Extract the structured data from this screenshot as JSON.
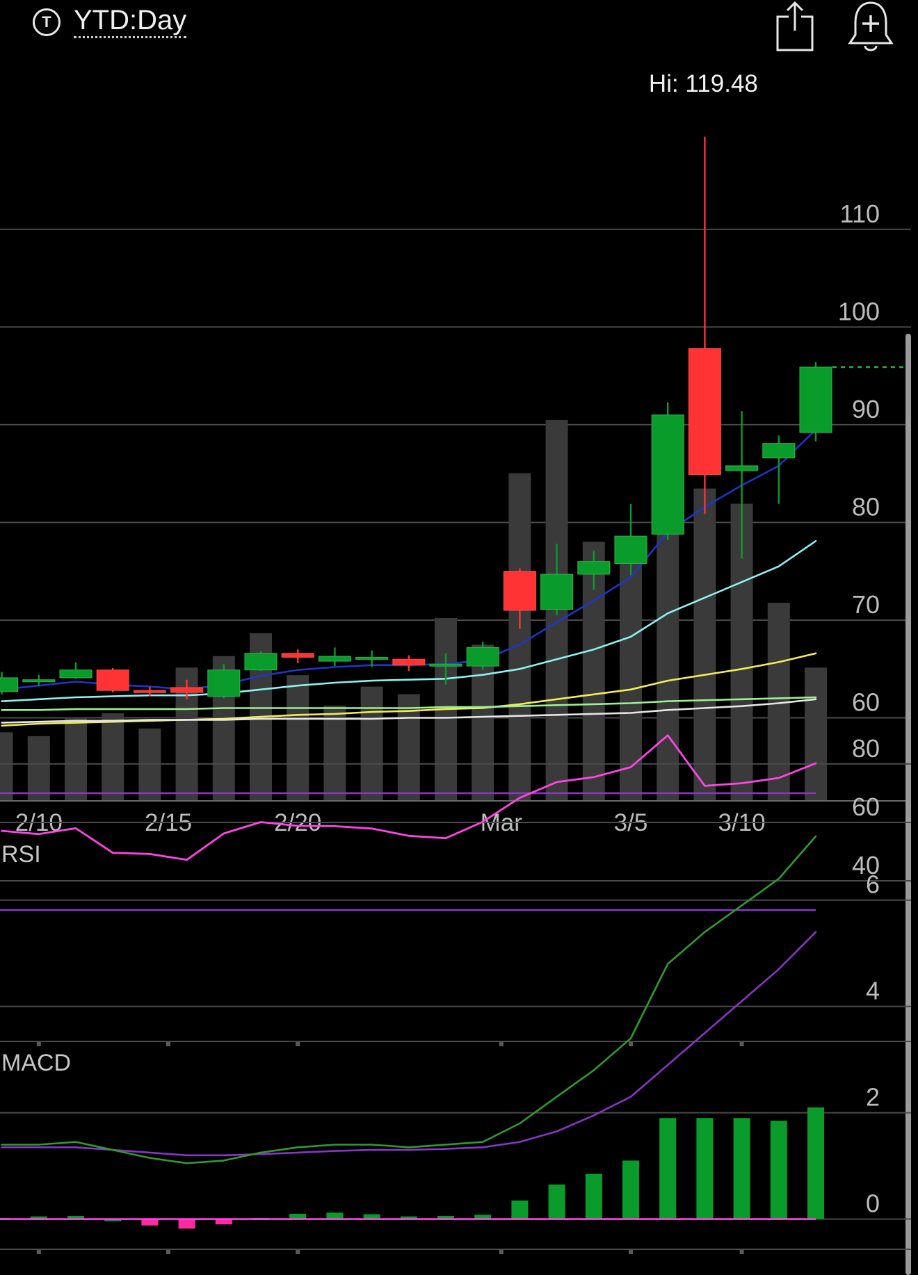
{
  "header": {
    "period_icon": "T",
    "period_label": "YTD:Day",
    "share_icon": "share-icon",
    "alert_icon": "add-alert-bell-icon"
  },
  "colors": {
    "background": "#000000",
    "up": "#0a9c2a",
    "down": "#ff3333",
    "volume": "#3a3a3a",
    "ma_blue": "#1f35c8",
    "ma_cyan": "#8cf3f0",
    "ma_yellow": "#f2ee52",
    "ma_green": "#9df08f",
    "ma_white": "#e6e6e6",
    "rsi": "#ff44e6",
    "rsi_band": "#8a35c8",
    "macd": "#2f9c2f",
    "signal": "#8a35c8",
    "hist_up": "#0a9c2a",
    "hist_down": "#ff2aa0",
    "last_price_line": "#2bb54a"
  },
  "chart_data": [
    {
      "id": "price",
      "type": "candlestick",
      "ylim": [
        51.5,
        126
      ],
      "yticks": [
        110,
        100,
        90,
        80,
        70,
        60
      ],
      "x_labels": [
        {
          "index": 1,
          "label": "2/10"
        },
        {
          "index": 4.5,
          "label": "2/15"
        },
        {
          "index": 8,
          "label": "2/20"
        },
        {
          "index": 13.5,
          "label": "Mar"
        },
        {
          "index": 17,
          "label": "3/5"
        },
        {
          "index": 20,
          "label": "3/10"
        }
      ],
      "high_label": "Hi: 119.48",
      "last_price": 95.9,
      "candles": [
        {
          "o": 62.7,
          "c": 64.1,
          "h": 64.7,
          "l": 62.4
        },
        {
          "o": 63.9,
          "c": 63.9,
          "h": 64.4,
          "l": 63.3
        },
        {
          "o": 64.1,
          "c": 64.9,
          "h": 65.7,
          "l": 64.0
        },
        {
          "o": 64.9,
          "c": 62.8,
          "h": 65.1,
          "l": 62.6
        },
        {
          "o": 62.8,
          "c": 62.7,
          "h": 63.2,
          "l": 62.2
        },
        {
          "o": 63.1,
          "c": 62.6,
          "h": 63.9,
          "l": 61.9
        },
        {
          "o": 62.2,
          "c": 64.9,
          "h": 65.5,
          "l": 62.0
        },
        {
          "o": 64.9,
          "c": 66.6,
          "h": 66.8,
          "l": 64.8
        },
        {
          "o": 66.6,
          "c": 66.2,
          "h": 67.0,
          "l": 65.6
        },
        {
          "o": 65.8,
          "c": 66.3,
          "h": 67.2,
          "l": 65.3
        },
        {
          "o": 66.1,
          "c": 66.2,
          "h": 66.9,
          "l": 65.2
        },
        {
          "o": 66.0,
          "c": 65.4,
          "h": 66.4,
          "l": 64.8
        },
        {
          "o": 65.5,
          "c": 65.5,
          "h": 66.6,
          "l": 63.4
        },
        {
          "o": 65.3,
          "c": 67.2,
          "h": 67.8,
          "l": 64.9
        },
        {
          "o": 75.0,
          "c": 71.0,
          "h": 75.3,
          "l": 69.1
        },
        {
          "o": 71.1,
          "c": 74.7,
          "h": 77.8,
          "l": 70.5
        },
        {
          "o": 74.7,
          "c": 76.0,
          "h": 77.1,
          "l": 73.1
        },
        {
          "o": 75.8,
          "c": 78.6,
          "h": 81.9,
          "l": 74.6
        },
        {
          "o": 78.8,
          "c": 91.0,
          "h": 92.3,
          "l": 78.2
        },
        {
          "o": 97.8,
          "c": 84.9,
          "h": 119.48,
          "l": 80.9
        },
        {
          "o": 85.3,
          "c": 85.8,
          "h": 91.4,
          "l": 76.3
        },
        {
          "o": 86.6,
          "c": 88.1,
          "h": 88.9,
          "l": 81.9
        },
        {
          "o": 89.2,
          "c": 95.9,
          "h": 96.4,
          "l": 88.3
        }
      ],
      "volume_series": {
        "name": "",
        "values": [
          0.18,
          0.17,
          0.22,
          0.23,
          0.19,
          0.35,
          0.38,
          0.44,
          0.33,
          0.25,
          0.3,
          0.28,
          0.48,
          0.41,
          0.86,
          1.0,
          0.68,
          0.63,
          0.78,
          0.82,
          0.78,
          0.52,
          0.35
        ]
      },
      "ma_series": [
        {
          "name": "",
          "color_key": "ma_blue",
          "values": [
            62.9,
            63.3,
            63.7,
            63.4,
            63.2,
            62.9,
            63.4,
            64.3,
            64.9,
            65.2,
            65.4,
            65.4,
            65.5,
            65.9,
            67.5,
            69.8,
            72.0,
            74.4,
            79.0,
            81.6,
            83.8,
            85.8,
            89.5
          ]
        },
        {
          "name": "",
          "color_key": "ma_cyan",
          "values": [
            61.7,
            61.9,
            62.1,
            62.2,
            62.3,
            62.3,
            62.5,
            62.9,
            63.3,
            63.6,
            63.8,
            63.9,
            64.0,
            64.4,
            65.0,
            66.0,
            67.0,
            68.3,
            70.7,
            72.3,
            73.9,
            75.5,
            78.1
          ]
        },
        {
          "name": "",
          "color_key": "ma_yellow",
          "values": [
            59.2,
            59.4,
            59.5,
            59.6,
            59.7,
            59.8,
            59.9,
            60.1,
            60.3,
            60.4,
            60.6,
            60.7,
            60.9,
            61.0,
            61.4,
            61.9,
            62.4,
            62.9,
            63.8,
            64.4,
            65.0,
            65.7,
            66.6
          ]
        },
        {
          "name": "",
          "color_key": "ma_green",
          "values": [
            60.8,
            60.8,
            60.9,
            60.9,
            60.9,
            60.9,
            61.0,
            61.0,
            61.0,
            61.0,
            61.0,
            61.0,
            61.1,
            61.1,
            61.2,
            61.3,
            61.4,
            61.5,
            61.7,
            61.8,
            61.9,
            62.0,
            62.1
          ]
        },
        {
          "name": "",
          "color_key": "ma_white",
          "values": [
            59.5,
            59.6,
            59.7,
            59.7,
            59.8,
            59.8,
            59.8,
            59.9,
            59.9,
            59.9,
            59.9,
            60.0,
            60.0,
            60.1,
            60.2,
            60.3,
            60.4,
            60.5,
            60.8,
            61.0,
            61.2,
            61.5,
            61.9
          ]
        }
      ]
    },
    {
      "id": "rsi",
      "type": "line",
      "title": "RSI",
      "ylim": [
        6,
        94
      ],
      "yticks": [
        80,
        60,
        40
      ],
      "bands": [
        70,
        30
      ],
      "series": [
        {
          "name": "",
          "values": [
            57.1,
            56.0,
            58.0,
            49.6,
            49.2,
            47.2,
            56.2,
            60.1,
            58.8,
            58.7,
            57.9,
            55.4,
            54.6,
            60.2,
            68.4,
            73.8,
            75.5,
            78.9,
            89.8,
            72.5,
            73.4,
            75.2,
            80.2
          ]
        }
      ]
    },
    {
      "id": "macd",
      "type": "line",
      "title": "MACD",
      "ylim": [
        -1,
        7.5
      ],
      "yticks": [
        6,
        4,
        2,
        0
      ],
      "series": [
        {
          "name": "",
          "color_key": "macd",
          "values": [
            1.4,
            1.4,
            1.45,
            1.3,
            1.15,
            1.05,
            1.1,
            1.25,
            1.35,
            1.4,
            1.4,
            1.35,
            1.4,
            1.45,
            1.8,
            2.3,
            2.8,
            3.4,
            4.8,
            5.4,
            5.9,
            6.4,
            7.2
          ]
        },
        {
          "name": "",
          "color_key": "signal",
          "values": [
            1.35,
            1.35,
            1.35,
            1.3,
            1.25,
            1.2,
            1.2,
            1.22,
            1.25,
            1.28,
            1.3,
            1.3,
            1.32,
            1.35,
            1.45,
            1.65,
            1.95,
            2.3,
            2.9,
            3.5,
            4.1,
            4.7,
            5.4
          ]
        }
      ],
      "histogram": [
        0.02,
        0.05,
        0.06,
        0.0,
        -0.12,
        -0.18,
        -0.1,
        0.02,
        0.1,
        0.12,
        0.09,
        0.05,
        0.06,
        0.08,
        0.35,
        0.65,
        0.85,
        1.1,
        1.9,
        1.9,
        1.9,
        1.85,
        2.1
      ]
    }
  ]
}
